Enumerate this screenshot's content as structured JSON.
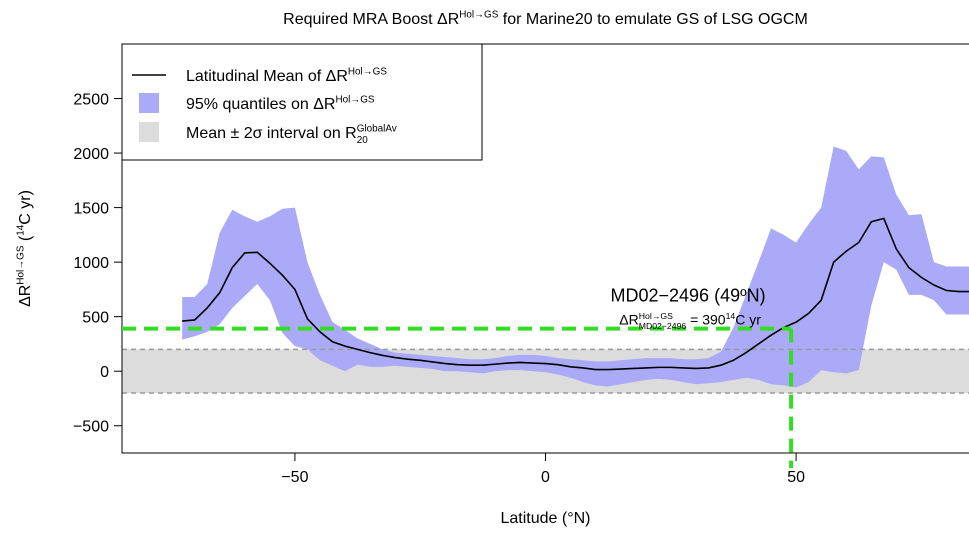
{
  "chart_data": {
    "type": "line",
    "title": [
      {
        "text": "Required MRA Boost ΔR"
      },
      {
        "text": "Hol→GS",
        "shift": "sup"
      },
      {
        "text": " for Marine20 to emulate GS of LSG OGCM"
      }
    ],
    "xlabel": [
      {
        "text": "Latitude (°N)"
      }
    ],
    "ylabel": [
      {
        "text": "ΔR"
      },
      {
        "text": "Hol→GS",
        "shift": "sup"
      },
      {
        "text": " ("
      },
      {
        "text": "14",
        "shift": "sup"
      },
      {
        "text": "C yr)"
      }
    ],
    "xlim": [
      -84.5,
      84.5
    ],
    "xticks": [
      {
        "value": -50,
        "label": "−50"
      },
      0,
      50
    ],
    "ylim": [
      -750,
      3000
    ],
    "yticks": [
      {
        "value": -500,
        "label": "−500"
      },
      0,
      500,
      1000,
      1500,
      2000,
      2500
    ],
    "legend": "top-left",
    "x": [
      -72.5,
      -70,
      -67.5,
      -65,
      -62.5,
      -60,
      -57.5,
      -55,
      -52.5,
      -50,
      -47.5,
      -45,
      -42.5,
      -40,
      -37.5,
      -35,
      -32.5,
      -30,
      -27.5,
      -25,
      -22.5,
      -20,
      -17.5,
      -15,
      -12.5,
      -10,
      -7.5,
      -5,
      -2.5,
      0,
      2.5,
      5,
      7.5,
      10,
      12.5,
      15,
      17.5,
      20,
      22.5,
      25,
      27.5,
      30,
      32.5,
      35,
      37.5,
      40,
      42.5,
      45,
      47.5,
      50,
      52.5,
      55,
      57.5,
      60,
      62.5,
      65,
      67.5,
      70,
      72.5,
      75,
      77.5,
      80,
      82.5,
      85
    ],
    "series": [
      {
        "name": [
          {
            "text": "Latitudinal Mean of ΔR"
          },
          {
            "text": "Hol→GS",
            "shift": "sup"
          }
        ],
        "color": "#000000",
        "values": [
          460,
          470,
          580,
          720,
          950,
          1085,
          1090,
          990,
          880,
          750,
          480,
          360,
          270,
          230,
          200,
          170,
          145,
          125,
          110,
          100,
          85,
          70,
          60,
          55,
          55,
          65,
          75,
          80,
          75,
          70,
          60,
          40,
          30,
          15,
          15,
          20,
          25,
          30,
          35,
          35,
          30,
          25,
          30,
          55,
          100,
          170,
          250,
          330,
          400,
          450,
          530,
          650,
          1000,
          1100,
          1180,
          1370,
          1400,
          1120,
          950,
          860,
          790,
          740,
          730,
          730
        ]
      }
    ],
    "band": {
      "name": [
        {
          "text": "95% quantiles on ΔR"
        },
        {
          "text": "Hol→GS",
          "shift": "sup"
        }
      ],
      "color": "#aaaaf8",
      "upper": [
        680,
        680,
        800,
        1270,
        1480,
        1420,
        1370,
        1420,
        1490,
        1500,
        1000,
        700,
        450,
        380,
        300,
        250,
        200,
        170,
        160,
        150,
        140,
        130,
        120,
        110,
        110,
        120,
        140,
        150,
        150,
        140,
        120,
        110,
        100,
        90,
        90,
        100,
        110,
        120,
        120,
        120,
        110,
        110,
        120,
        180,
        400,
        700,
        1000,
        1310,
        1250,
        1180,
        1350,
        1500,
        2060,
        2020,
        1850,
        1970,
        1960,
        1620,
        1430,
        1440,
        1000,
        960,
        960,
        960
      ],
      "lower": [
        290,
        320,
        360,
        430,
        580,
        690,
        800,
        650,
        350,
        230,
        200,
        100,
        50,
        0,
        60,
        40,
        40,
        50,
        40,
        30,
        20,
        0,
        0,
        -10,
        -20,
        0,
        10,
        10,
        0,
        -10,
        -30,
        -60,
        -100,
        -130,
        -140,
        -120,
        -100,
        -80,
        -70,
        -80,
        -100,
        -120,
        -110,
        -100,
        -80,
        -60,
        -80,
        -120,
        -130,
        -150,
        -100,
        10,
        -10,
        -20,
        10,
        600,
        1000,
        930,
        700,
        700,
        650,
        520,
        520,
        520
      ]
    },
    "interval": {
      "name": [
        {
          "text": "Mean ± 2σ interval on R"
        },
        {
          "text": "GlobalAv",
          "shift": "sup"
        },
        {
          "text": "20",
          "shift": "sub"
        }
      ],
      "color": "#dcdcdc",
      "line_color": "#9a9a9a",
      "limits": [
        -200,
        200
      ]
    },
    "reference": {
      "x": 49,
      "y": 390,
      "color": "#33dd22",
      "label": [
        {
          "text": "MD02−2496 (49ºN)"
        }
      ],
      "sublabel": [
        {
          "text": "ΔR"
        },
        {
          "text": "Hol→GS",
          "shift": "sup"
        },
        {
          "text": "MD02−2496",
          "shift": "sub"
        },
        {
          "text": " = 390"
        },
        {
          "text": "14",
          "shift": "sup"
        },
        {
          "text": "C yr"
        }
      ]
    }
  }
}
